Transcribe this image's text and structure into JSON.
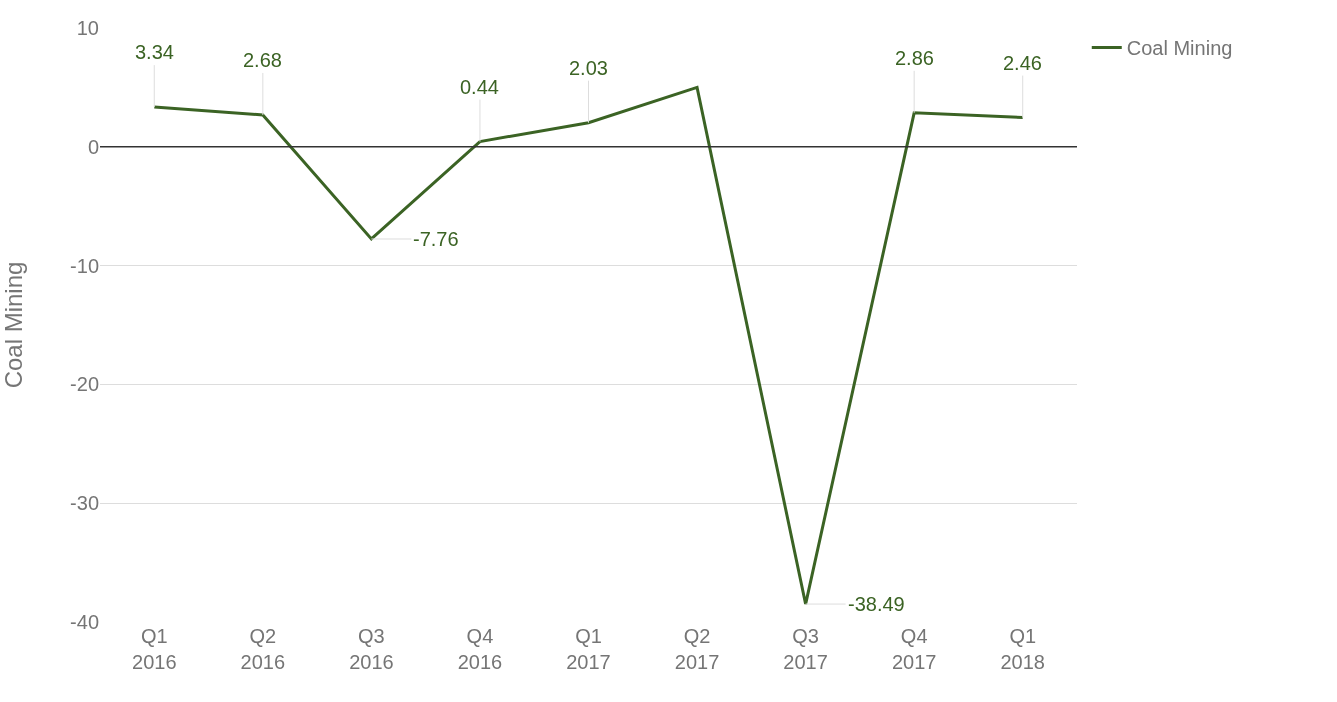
{
  "chart_data": {
    "type": "line",
    "ylabel": "Coal Mining",
    "categories": [
      "Q1 2016",
      "Q2 2016",
      "Q3 2016",
      "Q4 2016",
      "Q1 2017",
      "Q2 2017",
      "Q3 2017",
      "Q4 2017",
      "Q1 2018"
    ],
    "series": [
      {
        "name": "Coal Mining",
        "color": "#3b6324",
        "values": [
          3.34,
          2.68,
          -7.76,
          0.44,
          2.03,
          5.0,
          -38.49,
          2.86,
          2.46
        ],
        "value_labels": [
          "3.34",
          "2.68",
          "-7.76",
          "0.44",
          "2.03",
          null,
          "-38.49",
          "2.86",
          "2.46"
        ]
      }
    ],
    "ylim": [
      -40,
      10
    ],
    "yticks": [
      -40,
      -30,
      -20,
      -10,
      0,
      10
    ],
    "grid": "y",
    "legend": "top right",
    "marker": "none",
    "line_style": "solid",
    "ref_lines": [
      {
        "axis": "y",
        "value": 0,
        "color": "#333333"
      }
    ]
  }
}
